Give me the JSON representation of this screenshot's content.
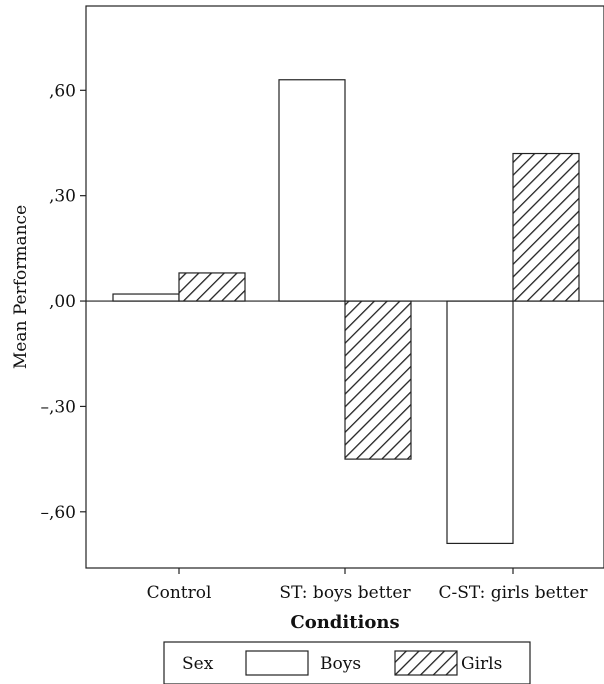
{
  "chart_data": {
    "type": "bar",
    "title": "",
    "xlabel": "Conditions",
    "ylabel": "Mean Performance",
    "categories": [
      "Control",
      "ST: boys better",
      "C-ST: girls better"
    ],
    "series": [
      {
        "name": "Boys",
        "values": [
          0.02,
          0.63,
          -0.69
        ],
        "fill": "#ffffff",
        "pattern": "none"
      },
      {
        "name": "Girls",
        "values": [
          0.08,
          -0.45,
          0.42
        ],
        "fill": "#ffffff",
        "pattern": "diagonal-hatch"
      }
    ],
    "ylim": [
      -0.76,
      0.84
    ],
    "yticks": [
      0.6,
      0.3,
      0.0,
      -0.3,
      -0.6
    ],
    "ytick_labels": [
      ",60",
      ",30",
      ",00",
      "–,30",
      "–,60"
    ],
    "zero_line": true,
    "grid": false,
    "legend": {
      "title": "Sex",
      "placement": "bottom-center",
      "entries": [
        "Boys",
        "Girls"
      ]
    }
  }
}
